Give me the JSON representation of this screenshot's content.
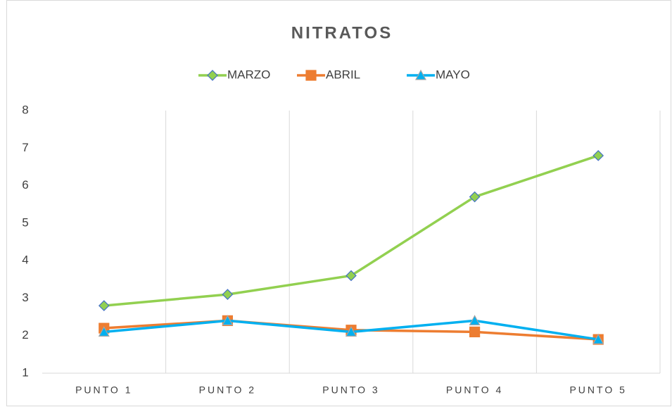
{
  "chart_data": {
    "type": "line",
    "title": "NITRATOS",
    "categories": [
      "PUNTO 1",
      "PUNTO 2",
      "PUNTO 3",
      "PUNTO 4",
      "PUNTO 5"
    ],
    "series": [
      {
        "name": "MARZO",
        "color": "#92d050",
        "marker": "diamond",
        "values": [
          2.8,
          3.1,
          3.6,
          5.7,
          6.8
        ]
      },
      {
        "name": "ABRIL",
        "color": "#ed7d31",
        "marker": "square",
        "values": [
          2.2,
          2.4,
          2.15,
          2.1,
          1.9
        ]
      },
      {
        "name": "MAYO",
        "color": "#00b0f0",
        "marker": "triangle",
        "values": [
          2.1,
          2.4,
          2.1,
          2.4,
          1.9
        ]
      }
    ],
    "ylim": [
      1,
      8
    ],
    "yticks": [
      1,
      2,
      3,
      4,
      5,
      6,
      7,
      8
    ],
    "grid": "vertical",
    "legend": "top"
  }
}
